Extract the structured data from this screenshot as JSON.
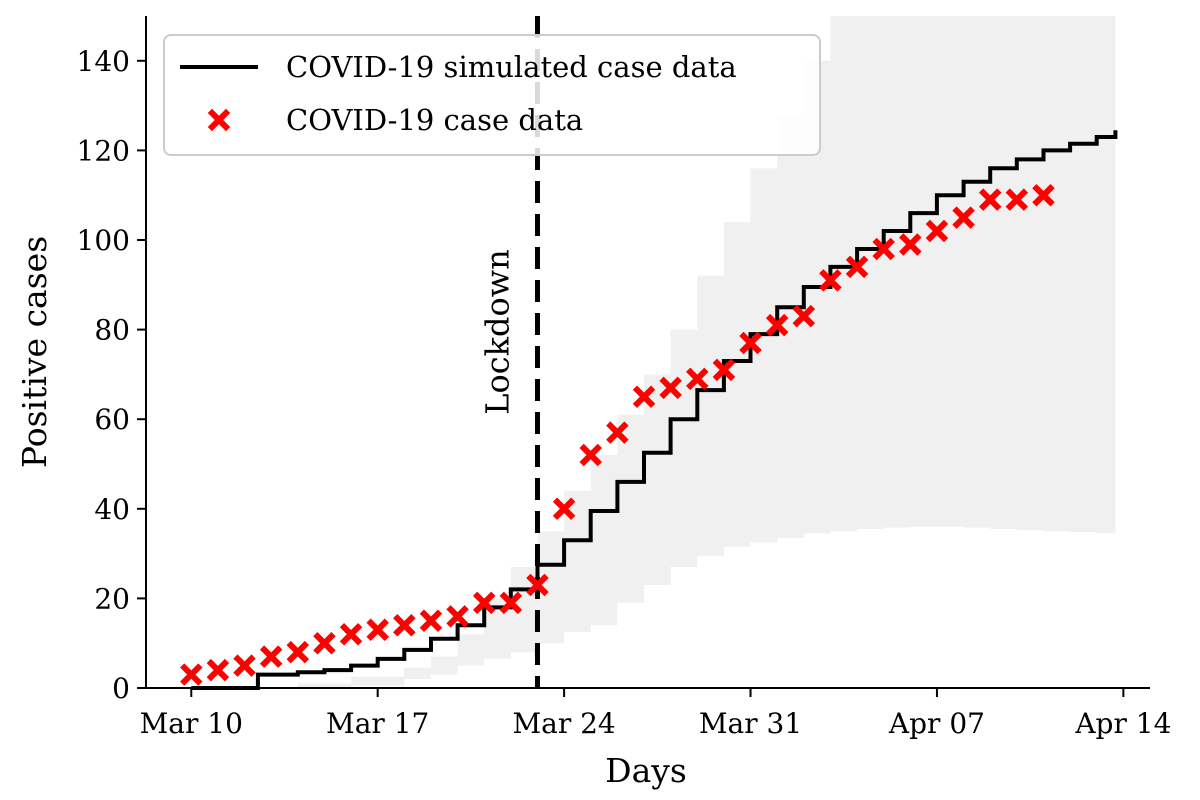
{
  "chart_data": {
    "type": "line",
    "title": "",
    "xlabel": "Days",
    "ylabel": "Positive cases",
    "x_tick_labels": [
      {
        "day": 0,
        "label": "Mar 10"
      },
      {
        "day": 7,
        "label": "Mar 17"
      },
      {
        "day": 14,
        "label": "Mar 24"
      },
      {
        "day": 21,
        "label": "Mar 31"
      },
      {
        "day": 28,
        "label": "Apr 07"
      },
      {
        "day": 35,
        "label": "Apr 14"
      }
    ],
    "y_ticks": [
      0,
      20,
      40,
      60,
      80,
      100,
      120,
      140
    ],
    "xlim_days": [
      -1.7,
      36
    ],
    "ylim": [
      0,
      150
    ],
    "grid": false,
    "legend_position": "top-left",
    "colors": {
      "simulated": "#000000",
      "observed": "#ff0000",
      "uncertainty_band": "#f0f0f0",
      "lockdown_line": "#000000"
    },
    "lockdown": {
      "day": 13,
      "label": "Lockdown"
    },
    "series": [
      {
        "name": "COVID-19 simulated case data",
        "style": "step-line",
        "x_days": [
          0,
          1,
          2,
          2.5,
          3,
          4,
          5,
          6,
          7,
          8,
          9,
          10,
          11,
          12,
          13,
          14,
          15,
          16,
          17,
          18,
          19,
          20,
          21,
          22,
          23,
          24,
          25,
          26,
          27,
          28,
          29,
          30,
          31,
          32,
          33,
          34,
          34.7
        ],
        "values": [
          0,
          0,
          0,
          3,
          3,
          3.5,
          4,
          5,
          6.5,
          8.5,
          11,
          14,
          18,
          22,
          27.5,
          33,
          39.5,
          46,
          52.5,
          60,
          66.5,
          73,
          79,
          85,
          89.5,
          94,
          98,
          102,
          106,
          110,
          113,
          116,
          118,
          120,
          121.5,
          123,
          124.5
        ]
      },
      {
        "name": "COVID-19 case data",
        "style": "markers",
        "marker": "x",
        "x_days": [
          0,
          1,
          2,
          3,
          4,
          5,
          6,
          7,
          8,
          9,
          10,
          11,
          12,
          13,
          14,
          15,
          16,
          17,
          18,
          19,
          20,
          21,
          22,
          23,
          24,
          25,
          26,
          27,
          28,
          29,
          30,
          31,
          32
        ],
        "values": [
          3,
          4,
          5,
          7,
          8,
          10,
          12,
          13,
          14,
          15,
          16,
          19,
          19,
          23,
          40,
          52,
          57,
          65,
          67,
          69,
          71,
          77,
          81,
          83,
          91,
          94,
          98,
          99,
          102,
          105,
          109,
          109,
          110
        ]
      }
    ],
    "uncertainty_band": {
      "x_days": [
        0,
        2,
        4,
        6,
        8,
        9,
        10,
        11,
        12,
        13,
        14,
        15,
        16,
        17,
        18,
        19,
        20,
        21,
        22,
        23,
        24,
        25,
        26,
        27,
        28,
        29,
        30,
        31,
        32,
        33,
        34,
        34.7
      ],
      "lower": [
        0,
        0,
        0,
        0.5,
        2,
        3,
        5,
        6.5,
        8,
        10,
        12.5,
        14,
        19,
        23,
        27,
        29.5,
        31.5,
        32.5,
        33.5,
        34.5,
        35,
        35.5,
        35.8,
        36,
        36,
        35.8,
        35.5,
        35.2,
        35,
        34.8,
        34.5,
        34
      ],
      "upper": [
        0,
        0,
        1,
        2.5,
        4.5,
        7,
        12,
        20,
        27,
        35,
        44,
        52,
        61,
        70,
        80,
        92,
        104,
        116,
        128,
        140,
        150,
        150,
        150,
        150,
        150,
        150,
        150,
        150,
        150,
        150,
        150,
        150
      ]
    }
  }
}
